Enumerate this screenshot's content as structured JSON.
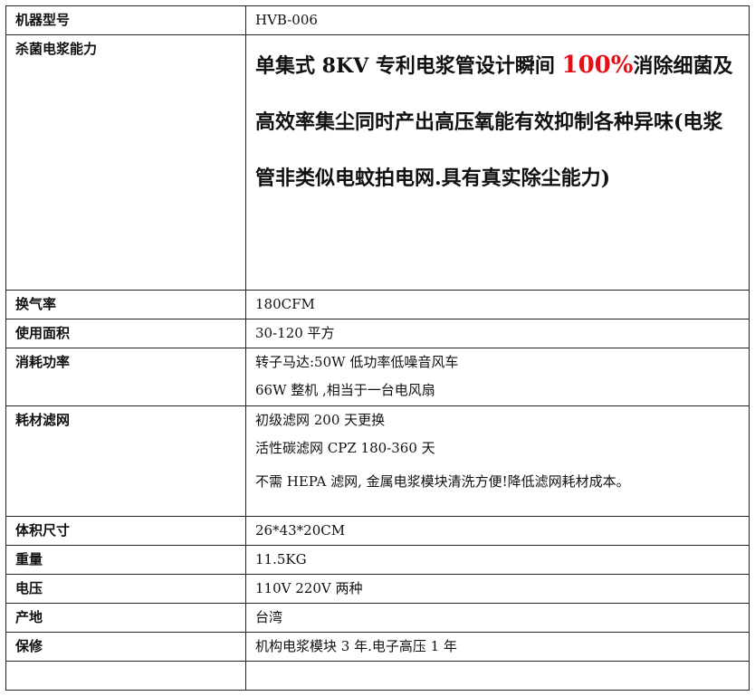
{
  "rows": [
    {
      "label": "机器型号",
      "lines": [
        "HVB-006"
      ]
    },
    {
      "label": "杀菌电浆能力",
      "big": {
        "pre": "单集式 8KV 专利电浆管设计瞬间 ",
        "highlight": "100%",
        "post": "消除细菌及高效率集尘同时产出高压氧能有效抑制各种异味(电浆管非类似电蚊拍电网.具有真实除尘能力)"
      }
    },
    {
      "label": "换气率",
      "lines": [
        "180CFM"
      ]
    },
    {
      "label": "使用面积",
      "lines": [
        "30-120 平方"
      ]
    },
    {
      "label": "消耗功率",
      "lines": [
        "转子马达:50W 低功率低噪音风车",
        "66W 整机 ,相当于一台电风扇"
      ]
    },
    {
      "label": "耗材滤网",
      "lines": [
        "初级滤网 200 天更换",
        "活性碳滤网 CPZ 180-360 天",
        "不需 HEPA 滤网, 金属电浆模块清洗方便!降低滤网耗材成本。"
      ]
    },
    {
      "label": "体积尺寸",
      "lines": [
        "26*43*20CM"
      ]
    },
    {
      "label": "重量",
      "lines": [
        "11.5KG"
      ]
    },
    {
      "label": "电压",
      "lines": [
        "110V 220V 两种"
      ]
    },
    {
      "label": "产地",
      "lines": [
        "台湾"
      ]
    },
    {
      "label": "保修",
      "lines": [
        "机构电浆模块 3 年.电子高压 1 年"
      ]
    },
    {
      "label": "",
      "lines": [
        ""
      ]
    }
  ],
  "colors": {
    "highlight": "#e0101a"
  }
}
